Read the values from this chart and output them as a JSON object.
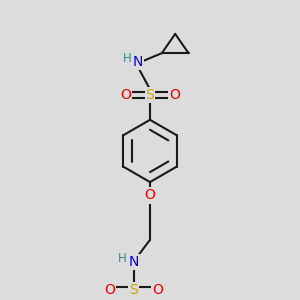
{
  "bg_color": "#dcdcdc",
  "bond_color": "#1a1a1a",
  "colors": {
    "N": "#0000ee",
    "O": "#ee0000",
    "S": "#ccaa00",
    "H": "#3a8a8a",
    "C": "#1a1a1a"
  },
  "font_size_atom": 10,
  "font_size_H": 8.5
}
